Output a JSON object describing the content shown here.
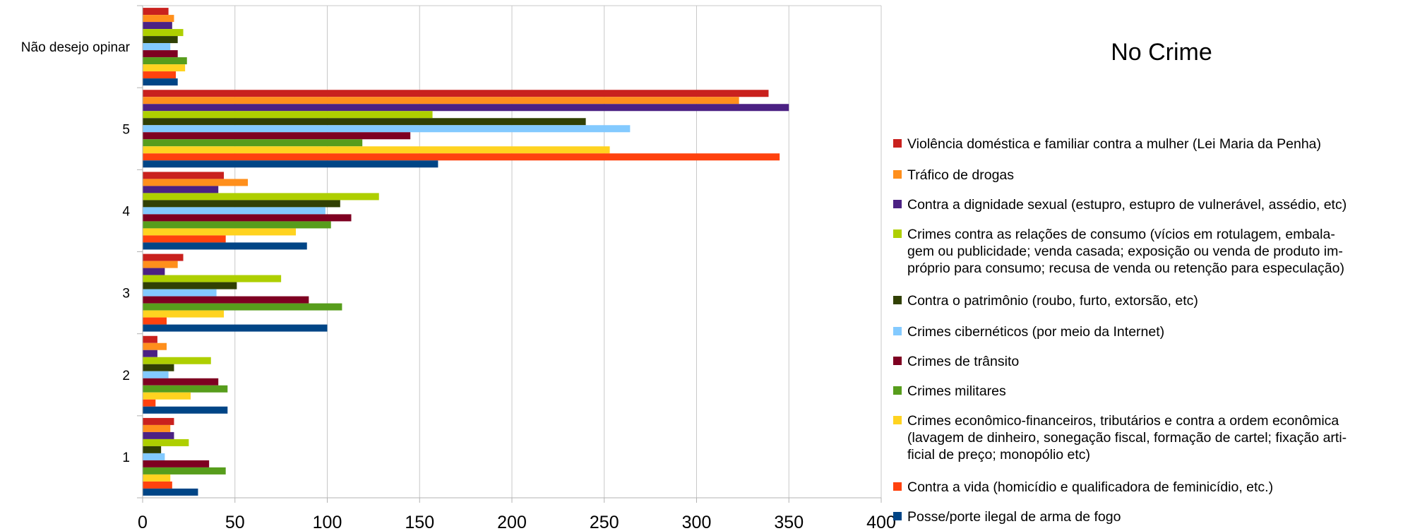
{
  "chart_data": {
    "type": "bar",
    "orientation": "horizontal",
    "title": "No Crime",
    "xlabel": "",
    "ylabel": "",
    "xlim": [
      0,
      400
    ],
    "x_ticks": [
      "0",
      "50",
      "100",
      "150",
      "200",
      "250",
      "300",
      "350",
      "400"
    ],
    "grid": "vertical",
    "legend_position": "right",
    "categories": [
      "Não desejo opinar",
      "5",
      "4",
      "3",
      "2",
      "1"
    ],
    "series": [
      {
        "name": "Violência doméstica e familiar contra a mulher (Lei Maria da Penha)",
        "color": "#c9211e",
        "values": [
          14,
          339,
          44,
          22,
          8,
          17
        ]
      },
      {
        "name": "Tráfico de drogas",
        "color": "#ff8f1c",
        "values": [
          17,
          323,
          57,
          19,
          13,
          15
        ]
      },
      {
        "name": "Contra a dignidade sexual (estupro, estupro de vulnerável, assédio, etc)",
        "color": "#4b2183",
        "values": [
          16,
          350,
          41,
          12,
          8,
          17
        ]
      },
      {
        "name": "Crimes contra as relações de consumo (vícios em rotulagem, embala-\ngem ou publicidade; venda casada; exposição ou venda de produto im-\npróprio para consumo; recusa de venda ou retenção para especulação)",
        "color": "#aecf00",
        "values": [
          22,
          157,
          128,
          75,
          37,
          25
        ]
      },
      {
        "name": "Contra o patrimônio (roubo, furto, extorsão, etc)",
        "color": "#314004",
        "values": [
          19,
          240,
          107,
          51,
          17,
          10
        ]
      },
      {
        "name": "Crimes cibernéticos (por meio da Internet)",
        "color": "#83caff",
        "values": [
          15,
          264,
          99,
          40,
          14,
          12
        ]
      },
      {
        "name": "Crimes de trânsito",
        "color": "#7e0021",
        "values": [
          19,
          145,
          113,
          90,
          41,
          36
        ]
      },
      {
        "name": "Crimes militares",
        "color": "#579d1c",
        "values": [
          24,
          119,
          102,
          108,
          46,
          45
        ]
      },
      {
        "name": "Crimes econômico-financeiros, tributários e contra a ordem econômica\n(lavagem de dinheiro, sonegação fiscal, formação de cartel; fixação arti-\nficial de preço; monopólio etc)",
        "color": "#ffd320",
        "values": [
          23,
          253,
          83,
          44,
          26,
          15
        ]
      },
      {
        "name": "Contra a vida (homicídio e qualificadora de feminicídio, etc.)",
        "color": "#ff420e",
        "values": [
          18,
          345,
          45,
          13,
          7,
          16
        ]
      },
      {
        "name": "Posse/porte ilegal de arma de fogo",
        "color": "#004586",
        "values": [
          19,
          160,
          89,
          100,
          46,
          30
        ]
      }
    ]
  }
}
